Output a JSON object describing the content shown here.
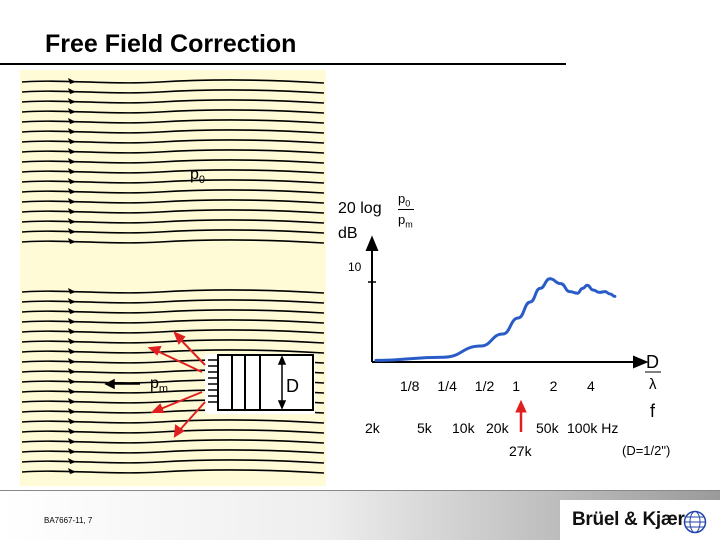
{
  "title": "Free Field Correction",
  "labels": {
    "p0": "p",
    "p0_sub": "0",
    "pm": "p",
    "pm_sub": "m",
    "diameter": "D"
  },
  "formula": {
    "prefix": "20 log",
    "num": "p",
    "num_sub": "0",
    "den": "p",
    "den_sub": "m",
    "unit": "dB"
  },
  "chart_data": {
    "type": "line",
    "ylabel": "20 log p0/pm dB",
    "y_tick": "10",
    "x_ratio_label_top": "D",
    "x_ratio_label_bottom": "λ",
    "x_ratio_ticks": [
      "1/8",
      "1/4",
      "1/2",
      "1",
      "2",
      "4"
    ],
    "x_freq_label": "f",
    "x_freq_ticks": [
      "2k",
      "5k",
      "10k",
      "20k",
      "50k",
      "100k Hz"
    ],
    "marker_label": "27k",
    "note": "(D=1/2\")",
    "marker_color": "#e02020",
    "curve_color": "#2a5cc8",
    "series": [
      {
        "x": [
          0.125,
          0.25,
          0.5,
          0.75,
          1.0,
          1.25,
          1.5,
          1.8,
          2.2,
          2.6,
          3.0,
          3.3,
          3.6,
          4.0,
          4.5,
          5.0,
          5.5,
          6.0
        ],
        "y": [
          0.2,
          0.6,
          2.0,
          3.5,
          5.5,
          7.5,
          9.2,
          10.4,
          9.8,
          8.8,
          8.6,
          9.2,
          9.6,
          9.0,
          8.7,
          8.8,
          8.5,
          8.2
        ]
      }
    ]
  },
  "footer": {
    "code": "BA7667-11, 7",
    "logo": "Brüel & Kjær"
  }
}
